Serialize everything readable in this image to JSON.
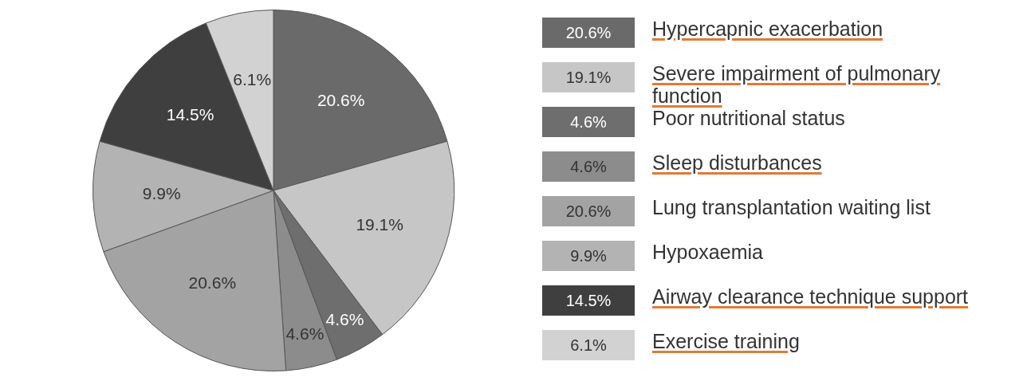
{
  "chart_data": {
    "type": "pie",
    "categories": [
      "Hypercapnic exacerbation",
      "Severe impairment of pulmonary function",
      "Poor nutritional status",
      "Sleep disturbances",
      "Lung transplantation waiting list",
      "Hypoxaemia",
      "Airway clearance technique support",
      "Exercise training"
    ],
    "values": [
      20.6,
      19.1,
      4.6,
      4.6,
      20.6,
      9.9,
      14.5,
      6.1
    ],
    "value_labels": [
      "20.6%",
      "19.1%",
      "4.6%",
      "4.6%",
      "20.6%",
      "9.9%",
      "14.5%",
      "6.1%"
    ],
    "colors": [
      "#6a6a6a",
      "#c6c6c6",
      "#6e6e6e",
      "#8c8c8c",
      "#a3a3a3",
      "#b3b3b3",
      "#3f3f3f",
      "#d2d2d2"
    ],
    "legend": "right"
  }
}
